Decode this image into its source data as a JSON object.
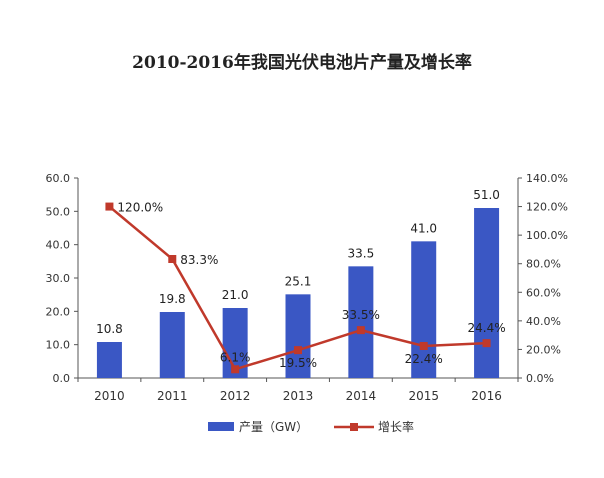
{
  "chart_data": {
    "type": "bar",
    "title": "2010-2016年我国光伏电池片产量及增长率",
    "categories": [
      "2010",
      "2011",
      "2012",
      "2013",
      "2014",
      "2015",
      "2016"
    ],
    "series": [
      {
        "name": "产量（GW）",
        "type": "bar",
        "axis": "left",
        "color": "#3a57c4",
        "values": [
          10.8,
          19.8,
          21.0,
          25.1,
          33.5,
          41.0,
          51.0
        ],
        "labels": [
          "10.8",
          "19.8",
          "21.0",
          "25.1",
          "33.5",
          "41.0",
          "51.0"
        ]
      },
      {
        "name": "增长率",
        "type": "line",
        "axis": "right",
        "color": "#c0392b",
        "values": [
          120.0,
          83.3,
          6.1,
          19.5,
          33.5,
          22.4,
          24.4
        ],
        "labels": [
          "120.0%",
          "83.3%",
          "6.1%",
          "19.5%",
          "33.5%",
          "22.4%",
          "24.4%"
        ]
      }
    ],
    "y_left": {
      "range": [
        0,
        60
      ],
      "ticks": [
        "0.0",
        "10.0",
        "20.0",
        "30.0",
        "40.0",
        "50.0",
        "60.0"
      ]
    },
    "y_right": {
      "range": [
        0,
        140
      ],
      "ticks": [
        "0.0%",
        "20.0%",
        "40.0%",
        "60.0%",
        "80.0%",
        "100.0%",
        "120.0%",
        "140.0%"
      ]
    },
    "grid": false,
    "legend_position": "bottom"
  }
}
